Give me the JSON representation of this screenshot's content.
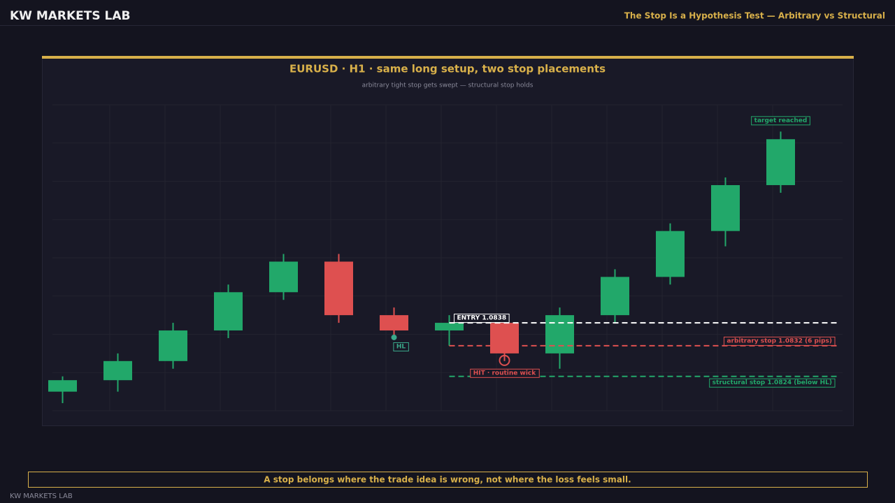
{
  "header": {
    "brand": "KW MARKETS LAB",
    "title": "The Stop Is a Hypothesis Test — Arbitrary vs Structural"
  },
  "chart_data": {
    "type": "candlestick",
    "title": "EURUSD  ·  H1  ·  same long setup, two stop placements",
    "subtitle": "arbitrary tight stop gets swept — structural stop holds",
    "up_color": "#22a86a",
    "down_color": "#de5050",
    "open": [
      1.082,
      1.0823,
      1.0828,
      1.0836,
      1.0846,
      1.0854,
      1.084,
      1.0836,
      1.0838,
      1.083,
      1.084,
      1.085,
      1.0862,
      1.0874
    ],
    "high": [
      1.0824,
      1.083,
      1.0838,
      1.0848,
      1.0856,
      1.0856,
      1.0842,
      1.084,
      1.0838,
      1.0842,
      1.0852,
      1.0864,
      1.0876,
      1.0888
    ],
    "low": [
      1.0817,
      1.082,
      1.0826,
      1.0834,
      1.0844,
      1.0838,
      1.0834,
      1.0832,
      1.0828,
      1.0826,
      1.0838,
      1.0848,
      1.0858,
      1.0872
    ],
    "close": [
      1.0823,
      1.0828,
      1.0836,
      1.0846,
      1.0854,
      1.084,
      1.0836,
      1.0838,
      1.083,
      1.084,
      1.085,
      1.0862,
      1.0874,
      1.0886
    ],
    "ylim": [
      1.0815,
      1.0895
    ],
    "grid": true,
    "levels": [
      {
        "label": "ENTRY 1.0838",
        "value": 1.0838,
        "color": "#ffffff"
      },
      {
        "label": "arbitrary stop 1.0832 (6 pips)",
        "value": 1.0832,
        "color": "#de5050"
      },
      {
        "label": "structural stop 1.0824  (below HL)",
        "value": 1.0824,
        "color": "#22a86a"
      }
    ],
    "annotations": {
      "hl": "HL",
      "hit": "HIT · routine wick",
      "target": "target reached"
    }
  },
  "footer": {
    "caption": "A stop belongs where the trade idea is wrong, not where the loss feels small.",
    "brand": "KW MARKETS LAB"
  }
}
